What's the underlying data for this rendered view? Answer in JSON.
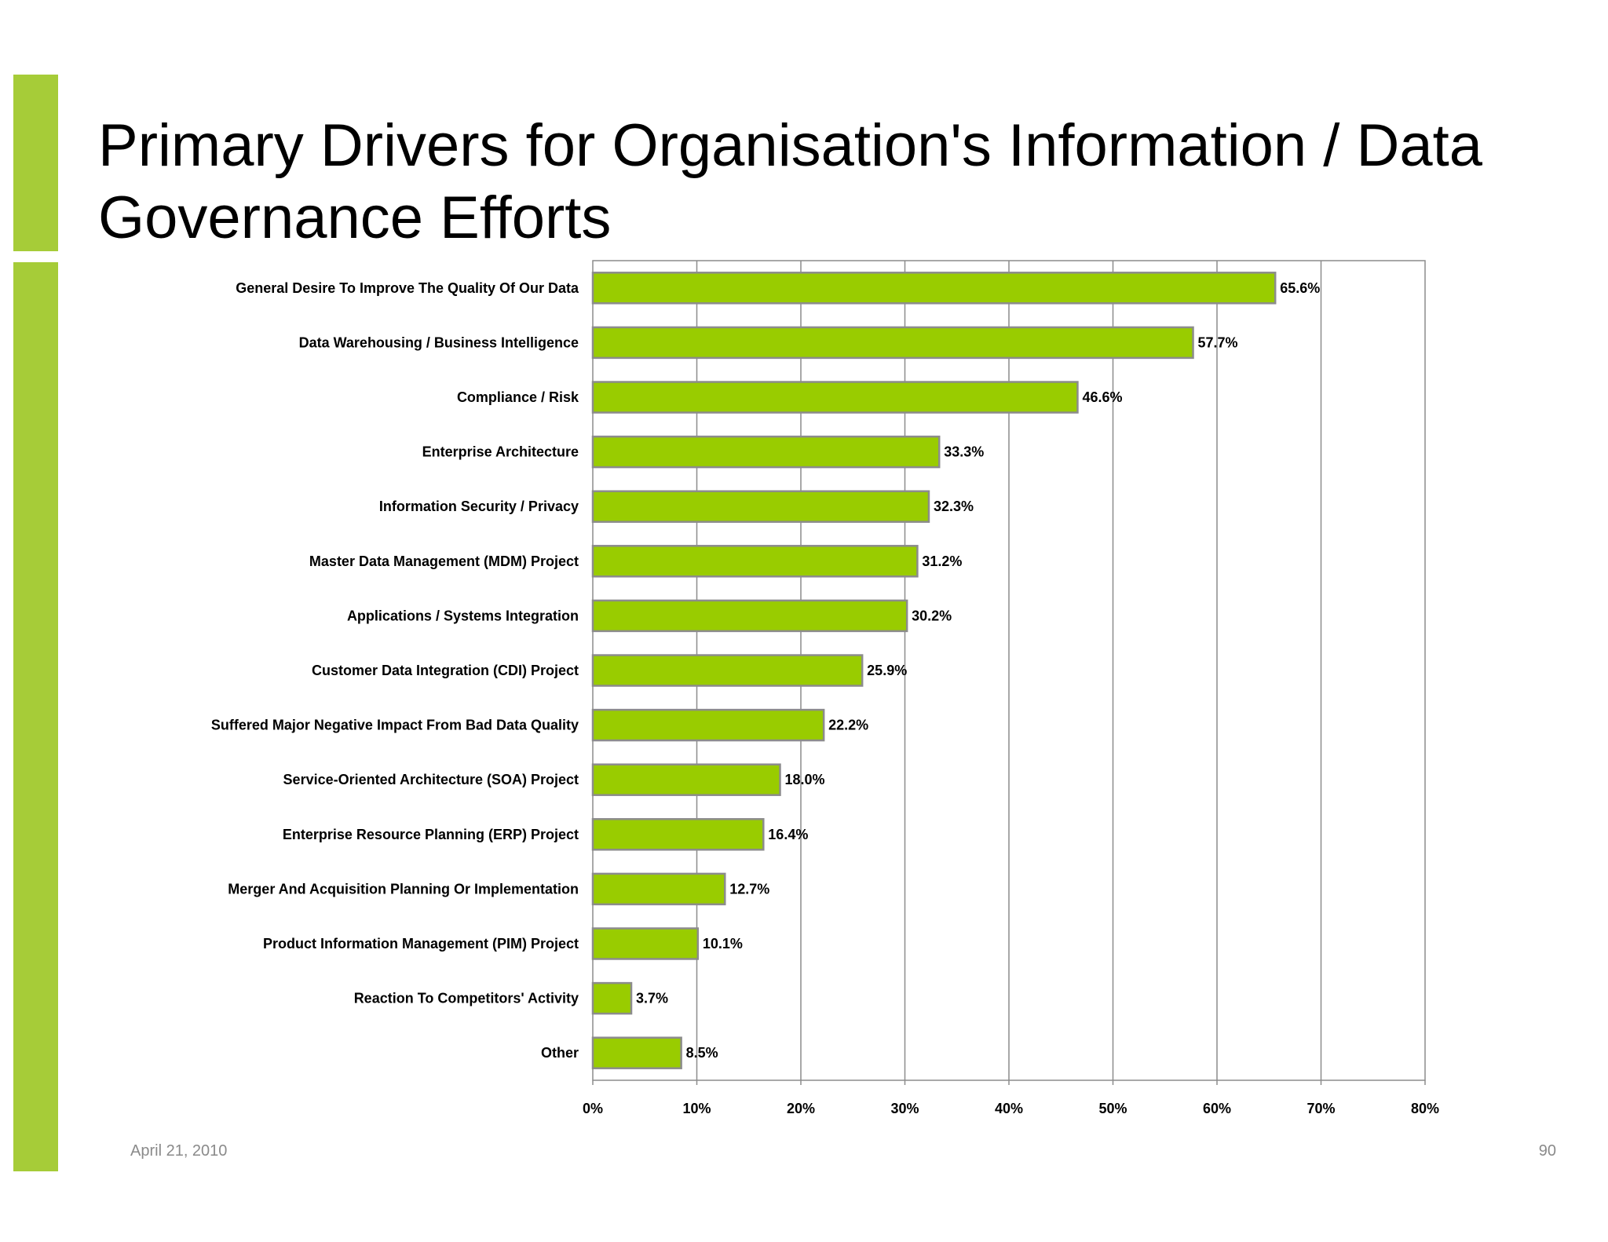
{
  "slide": {
    "title": "Primary Drivers for Organisation's Information / Data Governance Efforts",
    "date": "April 21, 2010",
    "page_number": "90",
    "accent_color": "#a6cc38"
  },
  "chart_data": {
    "type": "bar",
    "orientation": "horizontal",
    "categories": [
      "General Desire To Improve The Quality Of Our Data",
      "Data Warehousing / Business Intelligence",
      "Compliance / Risk",
      "Enterprise Architecture",
      "Information Security / Privacy",
      "Master Data Management (MDM) Project",
      "Applications / Systems Integration",
      "Customer Data Integration (CDI) Project",
      "Suffered Major Negative Impact From Bad Data Quality",
      "Service-Oriented Architecture (SOA) Project",
      "Enterprise Resource Planning (ERP) Project",
      "Merger And Acquisition Planning Or Implementation",
      "Product Information Management (PIM) Project",
      "Reaction To Competitors' Activity",
      "Other"
    ],
    "values": [
      65.6,
      57.7,
      46.6,
      33.3,
      32.3,
      31.2,
      30.2,
      25.9,
      22.2,
      18.0,
      16.4,
      12.7,
      10.1,
      3.7,
      8.5
    ],
    "value_labels": [
      "65.6%",
      "57.7%",
      "46.6%",
      "33.3%",
      "32.3%",
      "31.2%",
      "30.2%",
      "25.9%",
      "22.2%",
      "18.0%",
      "16.4%",
      "12.7%",
      "10.1%",
      "3.7%",
      "8.5%"
    ],
    "xlim": [
      0,
      80
    ],
    "x_ticks": [
      0,
      10,
      20,
      30,
      40,
      50,
      60,
      70,
      80
    ],
    "x_tick_labels": [
      "0%",
      "10%",
      "20%",
      "30%",
      "40%",
      "50%",
      "60%",
      "70%",
      "80%"
    ],
    "grid": true,
    "bar_color": "#99cc00",
    "bar_border_color": "#8c8c8c",
    "gridline_color": "#8c8c8c"
  }
}
